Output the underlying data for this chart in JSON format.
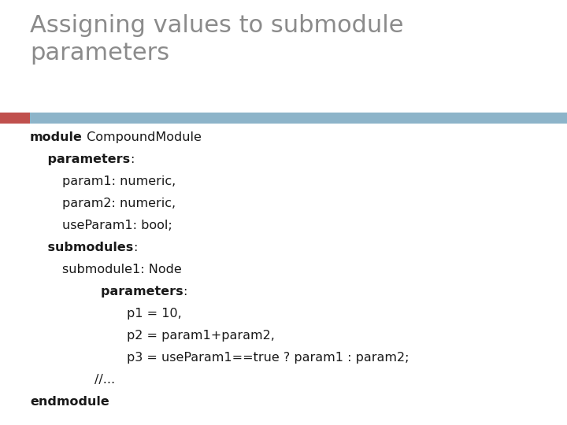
{
  "title": "Assigning values to submodule\nparameters",
  "title_color": "#8B8B8B",
  "title_fontsize": 22,
  "accent_bar_color_left": "#C0504D",
  "accent_bar_color_right": "#8DB4C9",
  "background_color": "#FFFFFF",
  "code_color": "#1A1A1A",
  "code_fontsize": 11.5,
  "font_family": "DejaVu Sans",
  "code_segments": [
    [
      [
        [
          "module",
          true
        ],
        [
          " CompoundModule",
          false
        ]
      ]
    ],
    [
      [
        [
          "    parameters",
          true
        ],
        [
          ":",
          false
        ]
      ]
    ],
    [
      [
        [
          "        param1: numeric,",
          false
        ]
      ]
    ],
    [
      [
        [
          "        param2: numeric,",
          false
        ]
      ]
    ],
    [
      [
        [
          "        useParam1: bool;",
          false
        ]
      ]
    ],
    [
      [
        [
          "    submodules",
          true
        ],
        [
          ":",
          false
        ]
      ]
    ],
    [
      [
        [
          "        submodule1: Node",
          false
        ]
      ]
    ],
    [
      [
        [
          "                parameters",
          true
        ],
        [
          ":",
          false
        ]
      ]
    ],
    [
      [
        [
          "                        p1 = 10,",
          false
        ]
      ]
    ],
    [
      [
        [
          "                        p2 = param1+param2,",
          false
        ]
      ]
    ],
    [
      [
        [
          "                        p3 = useParam1==true ? param1 : param2;",
          false
        ]
      ]
    ],
    [
      [
        [
          "                //...",
          false
        ]
      ]
    ],
    [
      [
        [
          "endmodule",
          true
        ]
      ]
    ]
  ]
}
